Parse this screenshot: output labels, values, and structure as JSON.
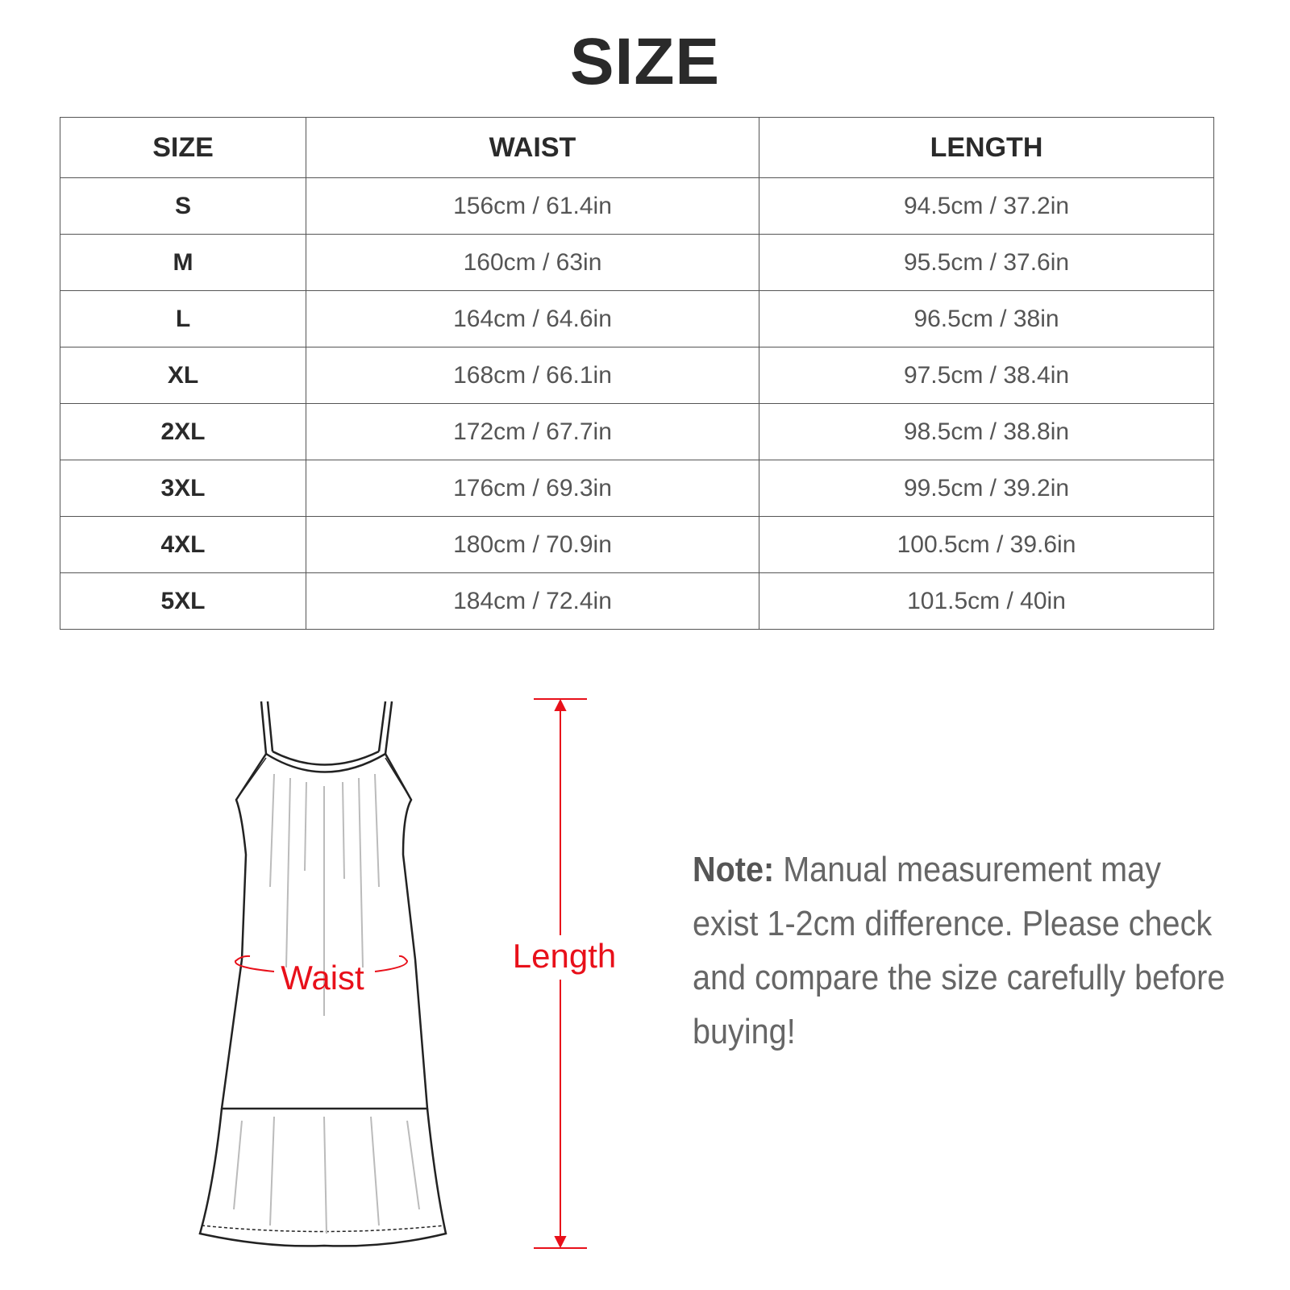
{
  "title": "SIZE",
  "table": {
    "headers": [
      "SIZE",
      "WAIST",
      "LENGTH"
    ],
    "rows": [
      [
        "S",
        "156cm / 61.4in",
        "94.5cm / 37.2in"
      ],
      [
        "M",
        "160cm / 63in",
        "95.5cm / 37.6in"
      ],
      [
        "L",
        "164cm / 64.6in",
        "96.5cm / 38in"
      ],
      [
        "XL",
        "168cm / 66.1in",
        "97.5cm / 38.4in"
      ],
      [
        "2XL",
        "172cm / 67.7in",
        "98.5cm / 38.8in"
      ],
      [
        "3XL",
        "176cm / 69.3in",
        "99.5cm / 39.2in"
      ],
      [
        "4XL",
        "180cm / 70.9in",
        "100.5cm / 39.6in"
      ],
      [
        "5XL",
        "184cm / 72.4in",
        "101.5cm / 40in"
      ]
    ]
  },
  "diagram": {
    "waist_label": "Waist",
    "length_label": "Length",
    "accent_color": "#e8101a"
  },
  "note": {
    "label": "Note:",
    "text": " Manual measurement may exist 1-2cm difference. Please check and compare the size carefully before buying!"
  }
}
